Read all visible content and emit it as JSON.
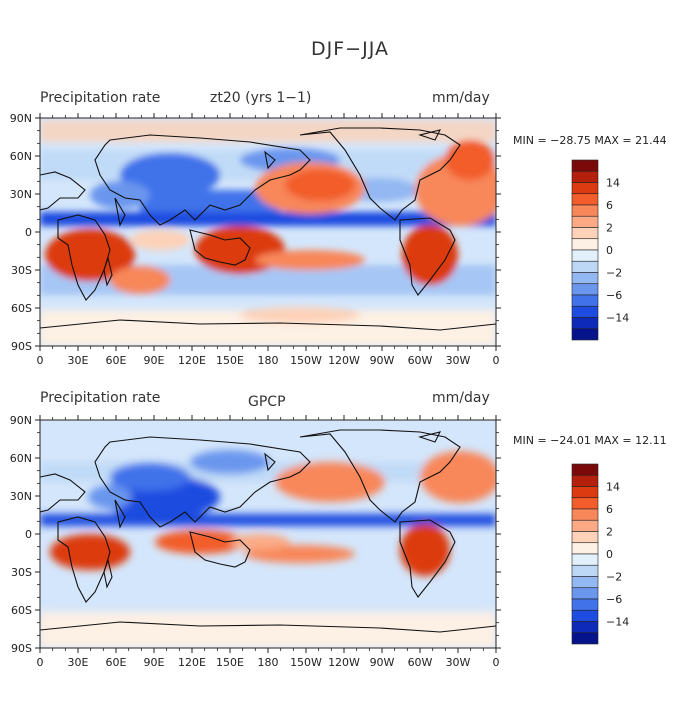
{
  "figure": {
    "title": "DJF−JJA"
  },
  "panels": [
    {
      "left_label": "Precipitation rate",
      "center_label": "zt20  (yrs 1−1)",
      "units": "mm/day",
      "minmax": "MIN = −28.75  MAX =  21.44"
    },
    {
      "left_label": "Precipitation rate",
      "center_label": "GPCP",
      "units": "mm/day",
      "minmax": "MIN = −24.01  MAX =  12.11"
    }
  ],
  "map": {
    "lat_ticks": [
      "90N",
      "60N",
      "30N",
      "0",
      "30S",
      "60S",
      "90S"
    ],
    "lon_ticks": [
      "0",
      "30E",
      "60E",
      "90E",
      "120E",
      "150E",
      "180",
      "150W",
      "120W",
      "90W",
      "60W",
      "30W",
      "0"
    ],
    "lat_range": [
      -90,
      90
    ],
    "lon_range": [
      0,
      360
    ]
  },
  "colorbar": {
    "labels": [
      "14",
      "6",
      "2",
      "0",
      "−2",
      "−6",
      "−14"
    ],
    "colors": [
      "#7a0a0a",
      "#b4200c",
      "#dc3a10",
      "#f25d2a",
      "#f8875a",
      "#fbaa85",
      "#fdd2b8",
      "#fdf0e4",
      "#e2f0fb",
      "#bcd8f6",
      "#93b8f2",
      "#6a96ee",
      "#4172ea",
      "#1e4ce0",
      "#0d2ab8",
      "#05148a"
    ]
  },
  "colors": {
    "positive": "#e8542a",
    "negative": "#2f64e6",
    "background_field": "#d4e6fb",
    "coast": "#111111"
  }
}
